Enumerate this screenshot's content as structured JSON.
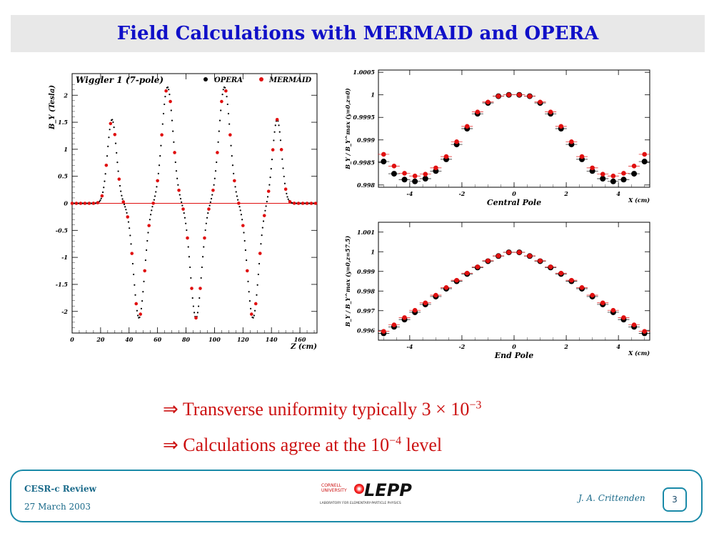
{
  "slide": {
    "title": "Field Calculations with MERMAID and OPERA",
    "bullets": [
      {
        "arrow": "⇒",
        "text": "Transverse uniformity typically 3 × 10",
        "sup": "−3",
        "tail": ""
      },
      {
        "arrow": "⇒",
        "text": "Calculations agree at the 10",
        "sup": "−4",
        "tail": " level"
      }
    ]
  },
  "footer": {
    "line1": "CESR-c Review",
    "line2": "27 March 2003",
    "author": "J. A. Crittenden",
    "page": "3",
    "logo_text": "LEPP",
    "logo_small1": "CORNELL",
    "logo_small2": "UNIVERSITY",
    "logo_sub": "LABORATORY FOR ELEMENTARY-PARTICLE PHYSICS"
  },
  "colors": {
    "title": "#1010c8",
    "bullet": "#cc1111",
    "footer": "#1a8aa8",
    "opera": "#000000",
    "mermaid": "#e01010"
  },
  "chart_data": [
    {
      "type": "scatter",
      "title": "Wiggler 1 (7-pole)",
      "xlabel": "Z (cm)",
      "ylabel": "B_Y (Tesla)",
      "xlim": [
        0,
        172
      ],
      "ylim": [
        -2.4,
        2.4
      ],
      "xticks": [
        0,
        20,
        40,
        60,
        80,
        100,
        120,
        140,
        160
      ],
      "yticks": [
        -2,
        -1.5,
        -1,
        -0.5,
        0,
        0.5,
        1,
        1.5,
        2
      ],
      "legend": [
        "OPERA",
        "MERMAID"
      ],
      "peaks": [
        {
          "z": 28,
          "amp": 1.55,
          "sigma": 4.5
        },
        {
          "z": 47,
          "amp": -2.12,
          "sigma": 5.5
        },
        {
          "z": 67,
          "amp": 2.15,
          "sigma": 5.5
        },
        {
          "z": 87,
          "amp": -2.12,
          "sigma": 5.5
        },
        {
          "z": 107,
          "amp": 2.15,
          "sigma": 5.5
        },
        {
          "z": 127,
          "amp": -2.12,
          "sigma": 5.5
        },
        {
          "z": 144,
          "amp": 1.55,
          "sigma": 4.5
        }
      ]
    },
    {
      "type": "scatter",
      "title": "",
      "xlabel": "Central Pole",
      "xunit": "X (cm)",
      "ylabel": "B_Y / B_Y^max (y=0,z=0)",
      "xlim": [
        -5.2,
        5.2
      ],
      "ylim": [
        0.99795,
        1.00055
      ],
      "xticks": [
        -4,
        -2,
        0,
        2,
        4
      ],
      "yticks": [
        "0.998",
        "0.9985",
        "0.999",
        "0.9995",
        "1",
        "1.0005"
      ],
      "series": [
        {
          "name": "OPERA",
          "x": [
            -5,
            -4.6,
            -4.2,
            -3.8,
            -3.4,
            -3,
            -2.6,
            -2.2,
            -1.8,
            -1.4,
            -1,
            -0.6,
            -0.2,
            0.2,
            0.6,
            1,
            1.4,
            1.8,
            2.2,
            2.6,
            3,
            3.4,
            3.8,
            4.2,
            4.6,
            5
          ],
          "y": [
            0.99852,
            0.99825,
            0.99812,
            0.99808,
            0.99814,
            0.99831,
            0.99857,
            0.9989,
            0.99925,
            0.99958,
            0.99982,
            0.99997,
            1.0,
            1.0,
            0.99997,
            0.99982,
            0.99958,
            0.99925,
            0.9989,
            0.99857,
            0.99831,
            0.99814,
            0.99808,
            0.99812,
            0.99825,
            0.99852
          ]
        },
        {
          "name": "MERMAID",
          "x": [
            -5,
            -4.6,
            -4.2,
            -3.8,
            -3.4,
            -3,
            -2.6,
            -2.2,
            -1.8,
            -1.4,
            -1,
            -0.6,
            -0.2,
            0.2,
            0.6,
            1,
            1.4,
            1.8,
            2.2,
            2.6,
            3,
            3.4,
            3.8,
            4.2,
            4.6,
            5
          ],
          "y": [
            0.99868,
            0.99842,
            0.99826,
            0.9982,
            0.99824,
            0.99838,
            0.99863,
            0.99896,
            0.9993,
            0.99962,
            0.99984,
            0.99997,
            1.0,
            1.0,
            0.99997,
            0.99984,
            0.99962,
            0.9993,
            0.99896,
            0.99863,
            0.99838,
            0.99824,
            0.9982,
            0.99826,
            0.99842,
            0.99868
          ]
        }
      ]
    },
    {
      "type": "scatter",
      "title": "",
      "xlabel": "End Pole",
      "xunit": "X (cm)",
      "ylabel": "B_Y / B_Y^max (y=0,z=57.5)",
      "xlim": [
        -5.2,
        5.2
      ],
      "ylim": [
        0.9955,
        1.0015
      ],
      "xticks": [
        -4,
        -2,
        0,
        2,
        4
      ],
      "yticks": [
        "0.996",
        "0.997",
        "0.998",
        "0.999",
        "1",
        "1.001"
      ],
      "series": [
        {
          "name": "OPERA",
          "x": [
            -5,
            -4.6,
            -4.2,
            -3.8,
            -3.4,
            -3,
            -2.6,
            -2.2,
            -1.8,
            -1.4,
            -1,
            -0.6,
            -0.2,
            0.2,
            0.6,
            1,
            1.4,
            1.8,
            2.2,
            2.6,
            3,
            3.4,
            3.8,
            4.2,
            4.6,
            5
          ],
          "y": [
            0.99585,
            0.99618,
            0.99655,
            0.99692,
            0.99732,
            0.99772,
            0.99812,
            0.9985,
            0.99887,
            0.9992,
            0.99952,
            0.99978,
            0.99997,
            0.99997,
            0.99978,
            0.99952,
            0.9992,
            0.99887,
            0.9985,
            0.99812,
            0.99772,
            0.99732,
            0.99692,
            0.99655,
            0.99618,
            0.99585
          ]
        },
        {
          "name": "MERMAID",
          "x": [
            -5,
            -4.6,
            -4.2,
            -3.8,
            -3.4,
            -3,
            -2.6,
            -2.2,
            -1.8,
            -1.4,
            -1,
            -0.6,
            -0.2,
            0.2,
            0.6,
            1,
            1.4,
            1.8,
            2.2,
            2.6,
            3,
            3.4,
            3.8,
            4.2,
            4.6,
            5
          ],
          "y": [
            0.99595,
            0.99628,
            0.99665,
            0.99702,
            0.9974,
            0.99779,
            0.99818,
            0.99855,
            0.99891,
            0.99923,
            0.99954,
            0.99979,
            0.99997,
            0.99997,
            0.99979,
            0.99954,
            0.99923,
            0.99891,
            0.99855,
            0.99818,
            0.99779,
            0.9974,
            0.99702,
            0.99665,
            0.99628,
            0.99595
          ]
        }
      ]
    }
  ]
}
